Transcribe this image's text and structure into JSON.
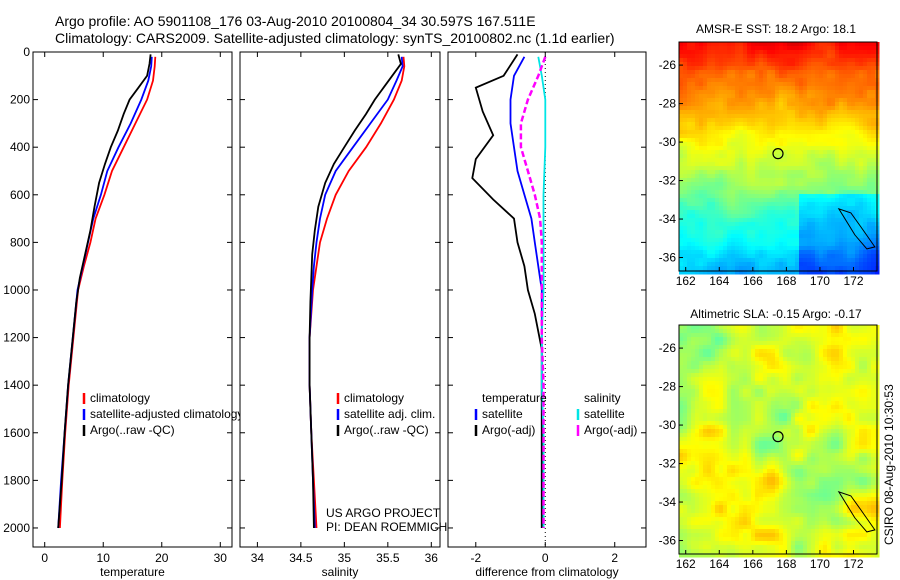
{
  "header": {
    "line1": "Argo profile: AO 5901108_176 03-Aug-2010 20100804_34 30.597S 167.511E",
    "line2": "Climatology: CARS2009. Satellite-adjusted climatology: synTS_20100802.nc (1.1d earlier)"
  },
  "credit": "CSIRO 08-Aug-2010 10:30:53",
  "project_note": {
    "line1": "US ARGO PROJECT",
    "line2": "PI: DEAN ROEMMICH"
  },
  "colors": {
    "climatology": "#ff0000",
    "satellite": "#0000ff",
    "argo": "#000000",
    "sat_salinity": "#00e5e5",
    "argo_adj_salinity": "#ff00ff"
  },
  "chart_data": [
    {
      "type": "line",
      "id": "temperature",
      "xlabel": "temperature",
      "xlim": [
        -2,
        32
      ],
      "ylim": [
        0,
        2080
      ],
      "y_reversed": true,
      "xticks": [
        0,
        10,
        20,
        30
      ],
      "yticks": [
        0,
        200,
        400,
        600,
        800,
        1000,
        1200,
        1400,
        1600,
        1800,
        2000
      ],
      "legend": [
        {
          "label": "climatology",
          "color": "#ff0000"
        },
        {
          "label": "satellite-adjusted climatology",
          "color": "#0000ff"
        },
        {
          "label": "Argo(..raw -QC)",
          "color": "#000000"
        }
      ],
      "series": [
        {
          "name": "climatology",
          "color": "#ff0000",
          "points": [
            [
              18.9,
              20
            ],
            [
              18.8,
              60
            ],
            [
              18.5,
              120
            ],
            [
              17.5,
              200
            ],
            [
              15.5,
              300
            ],
            [
              13.5,
              400
            ],
            [
              11.5,
              500
            ],
            [
              10.2,
              600
            ],
            [
              8.7,
              700
            ],
            [
              7.8,
              800
            ],
            [
              6.7,
              900
            ],
            [
              5.7,
              1000
            ],
            [
              4.9,
              1200
            ],
            [
              4.1,
              1400
            ],
            [
              3.5,
              1600
            ],
            [
              3.0,
              1800
            ],
            [
              2.6,
              2000
            ]
          ]
        },
        {
          "name": "satellite",
          "color": "#0000ff",
          "points": [
            [
              18.3,
              20
            ],
            [
              18.2,
              60
            ],
            [
              17.7,
              120
            ],
            [
              16.5,
              200
            ],
            [
              14.7,
              300
            ],
            [
              12.6,
              400
            ],
            [
              10.7,
              500
            ],
            [
              9.6,
              600
            ],
            [
              8.3,
              700
            ],
            [
              7.4,
              800
            ],
            [
              6.5,
              900
            ],
            [
              5.6,
              1000
            ],
            [
              4.8,
              1200
            ],
            [
              4.0,
              1400
            ],
            [
              3.4,
              1600
            ],
            [
              2.8,
              1800
            ],
            [
              2.3,
              2000
            ]
          ]
        },
        {
          "name": "Argo(..raw -QC)",
          "color": "#000000",
          "points": [
            [
              18.1,
              10
            ],
            [
              17.9,
              50
            ],
            [
              17.5,
              100
            ],
            [
              16.0,
              150
            ],
            [
              14.5,
              200
            ],
            [
              13.5,
              260
            ],
            [
              12.5,
              330
            ],
            [
              11.3,
              400
            ],
            [
              10.3,
              470
            ],
            [
              9.3,
              550
            ],
            [
              8.5,
              650
            ],
            [
              7.8,
              750
            ],
            [
              6.9,
              850
            ],
            [
              6.0,
              950
            ],
            [
              5.4,
              1050
            ],
            [
              4.8,
              1200
            ],
            [
              4.0,
              1400
            ],
            [
              3.4,
              1600
            ],
            [
              2.9,
              1800
            ],
            [
              2.3,
              2000
            ]
          ]
        }
      ]
    },
    {
      "type": "line",
      "id": "salinity",
      "xlabel": "salinity",
      "xlim": [
        33.8,
        36.1
      ],
      "ylim": [
        0,
        2080
      ],
      "y_reversed": true,
      "xticks": [
        34,
        34.5,
        35,
        35.5,
        36
      ],
      "legend": [
        {
          "label": "climatology",
          "color": "#ff0000"
        },
        {
          "label": "satellite adj. clim.",
          "color": "#0000ff"
        },
        {
          "label": "Argo(..raw -QC)",
          "color": "#000000"
        }
      ],
      "series": [
        {
          "name": "climatology",
          "color": "#ff0000",
          "points": [
            [
              35.68,
              20
            ],
            [
              35.69,
              60
            ],
            [
              35.66,
              120
            ],
            [
              35.57,
              200
            ],
            [
              35.42,
              300
            ],
            [
              35.25,
              400
            ],
            [
              35.05,
              500
            ],
            [
              34.9,
              600
            ],
            [
              34.8,
              700
            ],
            [
              34.72,
              800
            ],
            [
              34.68,
              900
            ],
            [
              34.64,
              1000
            ],
            [
              34.6,
              1200
            ],
            [
              34.6,
              1400
            ],
            [
              34.62,
              1600
            ],
            [
              34.65,
              1800
            ],
            [
              34.68,
              2000
            ]
          ]
        },
        {
          "name": "satellite",
          "color": "#0000ff",
          "points": [
            [
              35.66,
              20
            ],
            [
              35.67,
              60
            ],
            [
              35.6,
              120
            ],
            [
              35.5,
              200
            ],
            [
              35.3,
              300
            ],
            [
              35.1,
              400
            ],
            [
              34.9,
              500
            ],
            [
              34.78,
              600
            ],
            [
              34.72,
              700
            ],
            [
              34.68,
              800
            ],
            [
              34.65,
              900
            ],
            [
              34.63,
              1000
            ],
            [
              34.6,
              1200
            ],
            [
              34.6,
              1400
            ],
            [
              34.62,
              1600
            ],
            [
              34.64,
              1800
            ],
            [
              34.66,
              2000
            ]
          ]
        },
        {
          "name": "Argo(..raw -QC)",
          "color": "#000000",
          "points": [
            [
              35.62,
              10
            ],
            [
              35.65,
              50
            ],
            [
              35.55,
              100
            ],
            [
              35.45,
              150
            ],
            [
              35.35,
              200
            ],
            [
              35.25,
              260
            ],
            [
              35.12,
              330
            ],
            [
              35.0,
              400
            ],
            [
              34.88,
              470
            ],
            [
              34.78,
              550
            ],
            [
              34.7,
              650
            ],
            [
              34.66,
              750
            ],
            [
              34.63,
              850
            ],
            [
              34.62,
              950
            ],
            [
              34.61,
              1050
            ],
            [
              34.6,
              1200
            ],
            [
              34.6,
              1400
            ],
            [
              34.62,
              1600
            ],
            [
              34.64,
              1800
            ],
            [
              34.65,
              2000
            ]
          ]
        }
      ]
    },
    {
      "type": "line",
      "id": "difference",
      "xlabel": "difference from climatology",
      "xlim": [
        -2.8,
        2.9
      ],
      "ylim": [
        0,
        2080
      ],
      "y_reversed": true,
      "xticks": [
        -2,
        0,
        2
      ],
      "legend_left": [
        {
          "label": "temperature",
          "color": null
        },
        {
          "label": "satellite",
          "color": "#0000ff"
        },
        {
          "label": "Argo(-adj)",
          "color": "#000000"
        }
      ],
      "legend_right": [
        {
          "label": "salinity",
          "color": null
        },
        {
          "label": "satellite",
          "color": "#00e5e5"
        },
        {
          "label": "Argo(-adj)",
          "color": "#ff00ff"
        }
      ],
      "series": [
        {
          "name": "temperature satellite",
          "color": "#0000ff",
          "points": [
            [
              -0.6,
              20
            ],
            [
              -0.9,
              100
            ],
            [
              -1.0,
              200
            ],
            [
              -1.0,
              300
            ],
            [
              -0.9,
              400
            ],
            [
              -0.8,
              500
            ],
            [
              -0.6,
              600
            ],
            [
              -0.4,
              700
            ],
            [
              -0.3,
              800
            ],
            [
              -0.2,
              900
            ],
            [
              -0.1,
              1000
            ],
            [
              -0.1,
              1200
            ],
            [
              -0.1,
              1400
            ],
            [
              -0.1,
              1600
            ],
            [
              -0.1,
              1800
            ],
            [
              -0.1,
              2000
            ]
          ]
        },
        {
          "name": "temperature Argo(-adj)",
          "color": "#000000",
          "points": [
            [
              -0.8,
              10
            ],
            [
              -1.2,
              100
            ],
            [
              -2.0,
              150
            ],
            [
              -1.8,
              250
            ],
            [
              -1.5,
              350
            ],
            [
              -2.0,
              450
            ],
            [
              -2.1,
              530
            ],
            [
              -1.5,
              620
            ],
            [
              -0.9,
              700
            ],
            [
              -0.8,
              800
            ],
            [
              -0.6,
              900
            ],
            [
              -0.5,
              1000
            ],
            [
              -0.3,
              1100
            ],
            [
              -0.1,
              1250
            ],
            [
              -0.1,
              1400
            ],
            [
              -0.1,
              1600
            ],
            [
              -0.1,
              1800
            ],
            [
              -0.1,
              2000
            ]
          ]
        },
        {
          "name": "salinity satellite",
          "color": "#00e5e5",
          "points": [
            [
              -0.2,
              20
            ],
            [
              -0.1,
              100
            ],
            [
              0.0,
              200
            ],
            [
              0.0,
              400
            ],
            [
              -0.05,
              600
            ],
            [
              -0.05,
              800
            ],
            [
              -0.05,
              1000
            ],
            [
              -0.1,
              1200
            ],
            [
              -0.1,
              1400
            ],
            [
              -0.05,
              1600
            ],
            [
              -0.05,
              1800
            ],
            [
              -0.05,
              2000
            ]
          ]
        },
        {
          "name": "salinity Argo(-adj)",
          "color": "#ff00ff",
          "dashed": true,
          "points": [
            [
              0.0,
              20
            ],
            [
              -0.2,
              100
            ],
            [
              -0.5,
              200
            ],
            [
              -0.7,
              300
            ],
            [
              -0.7,
              400
            ],
            [
              -0.5,
              500
            ],
            [
              -0.3,
              600
            ],
            [
              -0.15,
              700
            ],
            [
              -0.1,
              800
            ],
            [
              -0.1,
              1000
            ],
            [
              -0.1,
              1200
            ],
            [
              -0.05,
              1400
            ],
            [
              -0.05,
              1600
            ],
            [
              -0.05,
              1800
            ],
            [
              -0.05,
              2000
            ]
          ]
        }
      ]
    },
    {
      "type": "heatmap",
      "id": "sst_map",
      "title": "AMSR-E SST: 18.2 Argo: 18.1",
      "xlim": [
        161.6,
        173.4
      ],
      "ylim": [
        -36.7,
        -24.8
      ],
      "xticks": [
        162,
        164,
        166,
        168,
        170,
        172
      ],
      "yticks": [
        -26,
        -28,
        -30,
        -32,
        -34,
        -36
      ],
      "marker": [
        167.5,
        -30.6
      ]
    },
    {
      "type": "heatmap",
      "id": "sla_map",
      "title": "Altimetric SLA: -0.15 Argo: -0.17",
      "xlim": [
        161.6,
        173.4
      ],
      "ylim": [
        -36.7,
        -24.8
      ],
      "xticks": [
        162,
        164,
        166,
        168,
        170,
        172
      ],
      "yticks": [
        -26,
        -28,
        -30,
        -32,
        -34,
        -36
      ],
      "marker": [
        167.5,
        -30.6
      ]
    }
  ]
}
